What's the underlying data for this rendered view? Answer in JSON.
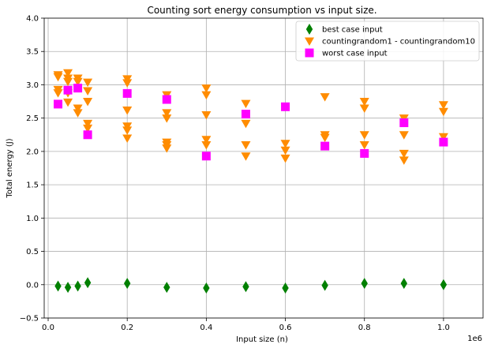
{
  "chart_data": {
    "type": "scatter",
    "title": "Counting sort energy consumption vs input size.",
    "xlabel": "Input size (n)",
    "ylabel": "Total energy (J)",
    "x_offset_text": "1e6",
    "xlim": [
      -0.01,
      1.1
    ],
    "ylim": [
      -0.5,
      4.0
    ],
    "xticks": [
      0.0,
      0.2,
      0.4,
      0.6,
      0.8,
      1.0
    ],
    "xtick_labels": [
      "0.0",
      "0.2",
      "0.4",
      "0.6",
      "0.8",
      "1.0"
    ],
    "yticks": [
      -0.5,
      0.0,
      0.5,
      1.0,
      1.5,
      2.0,
      2.5,
      3.0,
      3.5,
      4.0
    ],
    "ytick_labels": [
      "−0.5",
      "0.0",
      "0.5",
      "1.0",
      "1.5",
      "2.0",
      "2.5",
      "3.0",
      "3.5",
      "4.0"
    ],
    "grid": true,
    "legend_position": "top-right",
    "series": [
      {
        "name": "best case input",
        "marker": "diamond",
        "color": "#008000",
        "x": [
          0.025,
          0.05,
          0.075,
          0.1,
          0.2,
          0.3,
          0.4,
          0.5,
          0.6,
          0.7,
          0.8,
          0.9,
          1.0
        ],
        "y": [
          -0.02,
          -0.04,
          -0.02,
          0.03,
          0.02,
          -0.04,
          -0.05,
          -0.03,
          -0.05,
          -0.01,
          0.02,
          0.02,
          0.0
        ]
      },
      {
        "name": "countingrandom1 - countingrandom10",
        "marker": "triangle-down",
        "color": "#ff8c00",
        "x": [
          0.025,
          0.025,
          0.025,
          0.025,
          0.05,
          0.05,
          0.05,
          0.05,
          0.05,
          0.075,
          0.075,
          0.075,
          0.075,
          0.1,
          0.1,
          0.1,
          0.1,
          0.1,
          0.2,
          0.2,
          0.2,
          0.2,
          0.2,
          0.2,
          0.3,
          0.3,
          0.3,
          0.3,
          0.3,
          0.3,
          0.4,
          0.4,
          0.4,
          0.4,
          0.4,
          0.5,
          0.5,
          0.5,
          0.5,
          0.6,
          0.6,
          0.6,
          0.7,
          0.7,
          0.7,
          0.8,
          0.8,
          0.8,
          0.8,
          0.9,
          0.9,
          0.9,
          0.9,
          1.0,
          1.0,
          1.0
        ],
        "y": [
          3.15,
          3.12,
          2.93,
          2.88,
          3.18,
          3.1,
          3.05,
          2.88,
          2.74,
          3.1,
          3.05,
          2.65,
          2.58,
          3.04,
          2.91,
          2.75,
          2.42,
          2.35,
          3.09,
          3.03,
          2.62,
          2.38,
          2.32,
          2.2,
          2.85,
          2.58,
          2.5,
          2.14,
          2.1,
          2.05,
          2.95,
          2.85,
          2.55,
          2.18,
          2.1,
          2.72,
          2.42,
          2.1,
          1.93,
          2.12,
          2.02,
          1.9,
          2.82,
          2.25,
          2.21,
          2.75,
          2.65,
          2.25,
          2.1,
          2.5,
          2.25,
          1.97,
          1.87,
          2.7,
          2.6,
          2.22
        ]
      },
      {
        "name": "worst case input",
        "marker": "square",
        "color": "#ff00ff",
        "x": [
          0.025,
          0.05,
          0.075,
          0.1,
          0.2,
          0.3,
          0.4,
          0.5,
          0.6,
          0.7,
          0.8,
          0.9,
          1.0
        ],
        "y": [
          2.71,
          2.92,
          2.95,
          2.25,
          2.87,
          2.78,
          1.93,
          2.56,
          2.67,
          2.08,
          1.97,
          2.43,
          2.14
        ]
      }
    ]
  }
}
